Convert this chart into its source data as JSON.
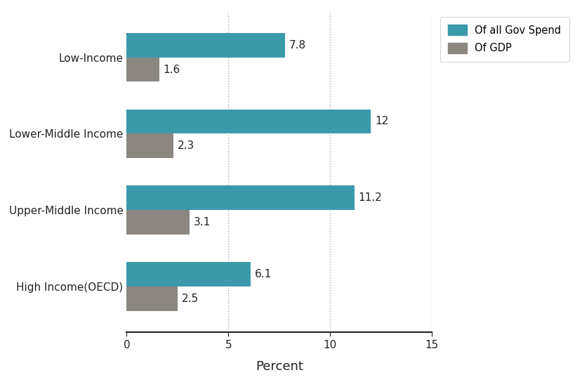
{
  "categories": [
    "High Income(OECD)",
    "Upper-Middle Income",
    "Lower-Middle Income",
    "Low-Income"
  ],
  "gov_spend": [
    6.1,
    11.2,
    12.0,
    7.8
  ],
  "gdp": [
    2.5,
    3.1,
    2.3,
    1.6
  ],
  "gov_spend_labels": [
    "6.1",
    "11.2",
    "12",
    "7.8"
  ],
  "gdp_labels": [
    "2.5",
    "3.1",
    "2.3",
    "1.6"
  ],
  "gov_spend_color": "#3a9aaa",
  "gdp_color": "#8b8680",
  "bar_height": 0.32,
  "xlim": [
    0,
    15
  ],
  "xticks": [
    0,
    5,
    10,
    15
  ],
  "xlabel": "Percent",
  "legend_labels": [
    "Of all Gov Spend",
    "Of GDP"
  ],
  "grid_color": "#aaaaaa",
  "background_color": "#ffffff",
  "label_fontsize": 11,
  "tick_fontsize": 11,
  "xlabel_fontsize": 13
}
